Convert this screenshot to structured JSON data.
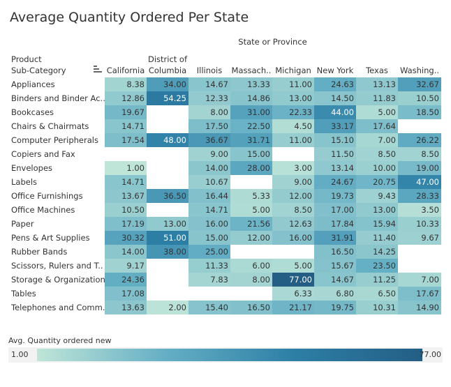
{
  "title": "Average Quantity Ordered Per State",
  "chart_data": {
    "type": "heatmap",
    "title": "Average Quantity Ordered Per State",
    "column_group_label": "State or Province",
    "row_header": [
      "Product",
      "Sub-Category"
    ],
    "columns": [
      "California",
      "District of Columbia",
      "Illinois",
      "Massach..",
      "Michigan",
      "New York",
      "Texas",
      "Washing.."
    ],
    "rows": [
      "Appliances",
      "Binders and Binder Ac..",
      "Bookcases",
      "Chairs & Chairmats",
      "Computer Peripherals",
      "Copiers and Fax",
      "Envelopes",
      "Labels",
      "Office Furnishings",
      "Office Machines",
      "Paper",
      "Pens & Art Supplies",
      "Rubber Bands",
      "Scissors, Rulers and T..",
      "Storage & Organization",
      "Tables",
      "Telephones and Comm.."
    ],
    "values": [
      [
        8.38,
        34.0,
        14.67,
        13.33,
        11.0,
        24.63,
        13.13,
        32.67
      ],
      [
        12.86,
        54.25,
        12.33,
        14.86,
        13.0,
        14.5,
        11.83,
        10.5
      ],
      [
        19.67,
        null,
        8.0,
        31.0,
        22.33,
        44.0,
        5.0,
        18.5
      ],
      [
        14.71,
        null,
        17.5,
        22.5,
        4.5,
        33.17,
        17.64,
        null
      ],
      [
        17.54,
        48.0,
        36.67,
        31.71,
        11.0,
        15.1,
        7.0,
        26.22
      ],
      [
        null,
        null,
        9.0,
        15.0,
        null,
        11.5,
        8.5,
        8.5
      ],
      [
        1.0,
        null,
        14.0,
        28.0,
        3.0,
        13.14,
        10.0,
        19.0
      ],
      [
        14.71,
        null,
        10.67,
        null,
        9.0,
        24.67,
        20.75,
        47.0
      ],
      [
        13.67,
        36.5,
        16.44,
        5.33,
        12.0,
        19.73,
        9.43,
        28.33
      ],
      [
        10.5,
        null,
        14.71,
        5.0,
        8.5,
        17.0,
        13.0,
        3.5
      ],
      [
        17.19,
        13.0,
        16.0,
        21.56,
        12.63,
        17.84,
        15.94,
        10.33
      ],
      [
        30.32,
        51.0,
        15.0,
        12.0,
        16.0,
        31.91,
        11.4,
        9.67
      ],
      [
        14.0,
        38.0,
        25.0,
        null,
        null,
        16.5,
        14.25,
        null
      ],
      [
        9.17,
        null,
        11.33,
        6.0,
        5.0,
        15.67,
        23.5,
        null
      ],
      [
        24.36,
        null,
        7.83,
        8.0,
        77.0,
        14.67,
        11.25,
        7.0
      ],
      [
        17.08,
        null,
        null,
        null,
        6.33,
        6.8,
        6.5,
        17.67
      ],
      [
        13.63,
        2.0,
        15.4,
        16.5,
        21.17,
        19.75,
        10.31,
        14.9
      ]
    ],
    "color_scale": {
      "min": 1.0,
      "max": 77.0,
      "low_color": "#bfe5d8",
      "high_color": "#245e85"
    },
    "legend": {
      "title": "Avg. Quantity ordered new",
      "min_label": "1.00",
      "max_label": "77.00",
      "placement": "bottom"
    }
  }
}
